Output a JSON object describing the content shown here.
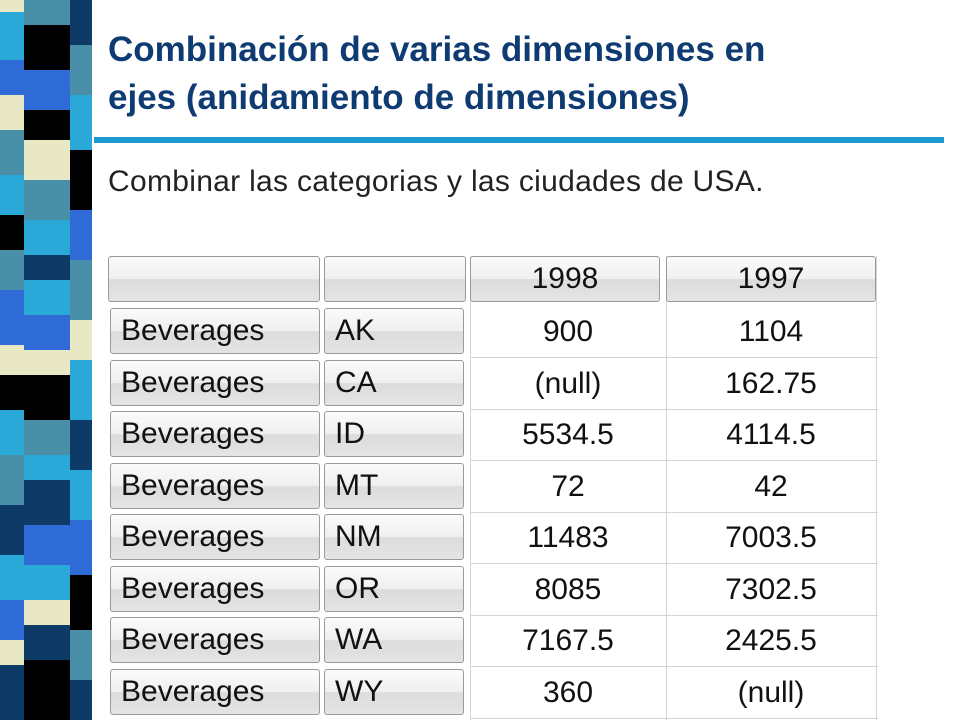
{
  "slide": {
    "title_line1": "Combinación de varias dimensiones en",
    "title_line2": "ejes (anidamiento de dimensiones)",
    "subtitle": "Combinar las categorias y las ciudades de USA."
  },
  "table": {
    "columns": [
      "",
      "",
      "1998",
      "1997"
    ],
    "rows": [
      {
        "category": "Beverages",
        "state": "AK",
        "y1998": "900",
        "y1997": "1104"
      },
      {
        "category": "Beverages",
        "state": "CA",
        "y1998": "(null)",
        "y1997": "162.75"
      },
      {
        "category": "Beverages",
        "state": "ID",
        "y1998": "5534.5",
        "y1997": "4114.5"
      },
      {
        "category": "Beverages",
        "state": "MT",
        "y1998": "72",
        "y1997": "42"
      },
      {
        "category": "Beverages",
        "state": "NM",
        "y1998": "11483",
        "y1997": "7003.5"
      },
      {
        "category": "Beverages",
        "state": "OR",
        "y1998": "8085",
        "y1997": "7302.5"
      },
      {
        "category": "Beverages",
        "state": "WA",
        "y1998": "7167.5",
        "y1997": "2425.5"
      },
      {
        "category": "Beverages",
        "state": "WY",
        "y1998": "360",
        "y1997": "(null)"
      }
    ]
  },
  "colors": {
    "title": "#0f3b73",
    "rule": "#1d9ad1",
    "stripe_dark": "#0d3a66",
    "stripe_black": "#000000",
    "stripe_blue": "#2f6bd6",
    "stripe_cyan": "#2aa9d8",
    "stripe_teal": "#4a8fa8",
    "stripe_cream": "#e8e8c4"
  }
}
